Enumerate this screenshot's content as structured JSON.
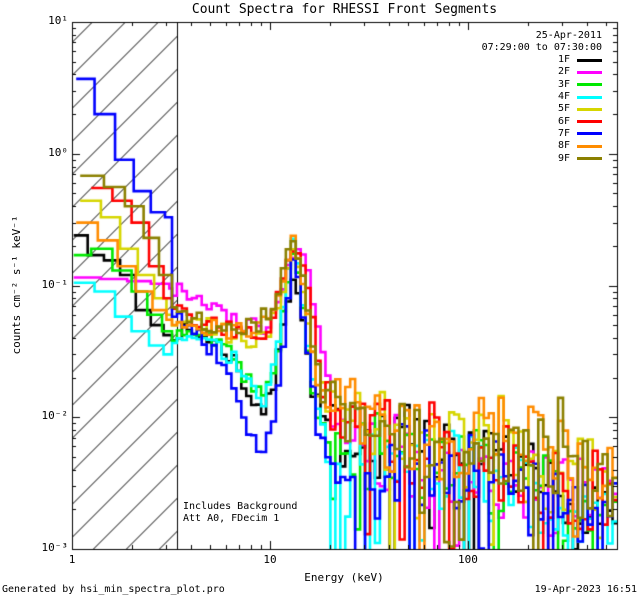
{
  "header": {
    "title": "Count Spectra for RHESSI Front Segments"
  },
  "annotations": {
    "date": "25-Apr-2011",
    "time_range": "07:29:00 to 07:30:00",
    "background_note": "Includes Background",
    "attenuator_note": "Att A0, FDecim 1"
  },
  "footer": {
    "generated_by": "Generated by hsi_min_spectra_plot.pro",
    "timestamp": "19-Apr-2023 16:51"
  },
  "chart_data": {
    "type": "line",
    "subtype": "histogram-step-spectra",
    "scale": "log-log",
    "title": "Count Spectra for RHESSI Front Segments",
    "xlabel": "Energy (keV)",
    "ylabel": "counts cm⁻² s⁻¹ keV⁻¹",
    "xlim": [
      1,
      566
    ],
    "ylim": [
      0.001,
      10
    ],
    "grid": false,
    "legend_position": "top-right-inside",
    "x_ticks": [
      {
        "value": 1,
        "label": "1"
      },
      {
        "value": 10,
        "label": "10"
      },
      {
        "value": 100,
        "label": "100"
      }
    ],
    "y_ticks": [
      {
        "value": 10,
        "label": "10¹"
      },
      {
        "value": 1,
        "label": "10⁰"
      },
      {
        "value": 0.1,
        "label": "10⁻¹"
      },
      {
        "value": 0.01,
        "label": "10⁻²"
      },
      {
        "value": 0.001,
        "label": "10⁻³"
      }
    ],
    "hatched_region": {
      "x_min": 1,
      "x_max": 3.4
    },
    "series": [
      {
        "name": "1F",
        "color": "#000000",
        "points": [
          [
            1.02,
            0.24
          ],
          [
            1.2,
            0.17
          ],
          [
            1.45,
            0.155
          ],
          [
            1.75,
            0.12
          ],
          [
            2.1,
            0.065
          ],
          [
            2.5,
            0.05
          ],
          [
            2.9,
            0.042
          ],
          [
            3.5,
            0.045
          ],
          [
            5,
            0.04
          ],
          [
            6.5,
            0.028
          ],
          [
            8,
            0.014
          ],
          [
            9.5,
            0.011
          ],
          [
            10.5,
            0.018
          ],
          [
            11.8,
            0.06
          ],
          [
            13.2,
            0.125
          ],
          [
            14.2,
            0.08
          ],
          [
            15.5,
            0.03
          ],
          [
            17,
            0.013
          ],
          [
            19,
            0.009
          ],
          [
            25,
            0.0065
          ],
          [
            40,
            0.0055
          ],
          [
            70,
            0.0045
          ],
          [
            120,
            0.0038
          ],
          [
            200,
            0.003
          ],
          [
            350,
            0.0022
          ],
          [
            566,
            0.0018
          ]
        ]
      },
      {
        "name": "2F",
        "color": "#ff00ff",
        "points": [
          [
            1.02,
            0.115
          ],
          [
            1.4,
            0.112
          ],
          [
            1.9,
            0.108
          ],
          [
            2.5,
            0.103
          ],
          [
            3.1,
            0.095
          ],
          [
            4,
            0.088
          ],
          [
            5.5,
            0.065
          ],
          [
            7,
            0.052
          ],
          [
            8.5,
            0.048
          ],
          [
            10,
            0.05
          ],
          [
            11.5,
            0.09
          ],
          [
            13,
            0.17
          ],
          [
            14,
            0.19
          ],
          [
            15,
            0.15
          ],
          [
            16.5,
            0.08
          ],
          [
            18,
            0.035
          ],
          [
            20,
            0.015
          ],
          [
            23,
            0.009
          ],
          [
            30,
            0.006
          ],
          [
            45,
            0.005
          ],
          [
            80,
            0.0042
          ],
          [
            130,
            0.0036
          ],
          [
            220,
            0.0028
          ],
          [
            400,
            0.0021
          ],
          [
            566,
            0.0019
          ]
        ]
      },
      {
        "name": "3F",
        "color": "#00e800",
        "points": [
          [
            1.02,
            0.17
          ],
          [
            1.25,
            0.19
          ],
          [
            1.6,
            0.13
          ],
          [
            2.0,
            0.09
          ],
          [
            2.4,
            0.06
          ],
          [
            2.85,
            0.045
          ],
          [
            3.5,
            0.04
          ],
          [
            5,
            0.042
          ],
          [
            6.5,
            0.03
          ],
          [
            8,
            0.018
          ],
          [
            9.5,
            0.014
          ],
          [
            10.8,
            0.025
          ],
          [
            12,
            0.08
          ],
          [
            13.2,
            0.19
          ],
          [
            14.2,
            0.1
          ],
          [
            15.5,
            0.035
          ],
          [
            17,
            0.013
          ],
          [
            19,
            0.0085
          ],
          [
            25,
            0.006
          ],
          [
            45,
            0.005
          ],
          [
            90,
            0.0042
          ],
          [
            150,
            0.0035
          ],
          [
            250,
            0.0027
          ],
          [
            400,
            0.0021
          ],
          [
            566,
            0.0018
          ]
        ]
      },
      {
        "name": "4F",
        "color": "#00ffff",
        "points": [
          [
            1.02,
            0.105
          ],
          [
            1.3,
            0.09
          ],
          [
            1.65,
            0.058
          ],
          [
            2.0,
            0.045
          ],
          [
            2.45,
            0.035
          ],
          [
            2.9,
            0.03
          ],
          [
            3.5,
            0.042
          ],
          [
            5,
            0.04
          ],
          [
            6.5,
            0.028
          ],
          [
            8,
            0.016
          ],
          [
            9.5,
            0.013
          ],
          [
            10.8,
            0.03
          ],
          [
            12,
            0.1
          ],
          [
            13.2,
            0.24
          ],
          [
            14.2,
            0.12
          ],
          [
            15.5,
            0.035
          ],
          [
            17,
            0.012
          ],
          [
            19,
            0.006
          ],
          [
            21,
            0.0022
          ],
          [
            24,
            0.007
          ],
          [
            35,
            0.005
          ],
          [
            60,
            0.0044
          ],
          [
            100,
            0.0038
          ],
          [
            170,
            0.0031
          ],
          [
            300,
            0.0024
          ],
          [
            566,
            0.0018
          ]
        ]
      },
      {
        "name": "5F",
        "color": "#d6d600",
        "points": [
          [
            1.1,
            0.44
          ],
          [
            1.4,
            0.33
          ],
          [
            1.75,
            0.19
          ],
          [
            2.15,
            0.12
          ],
          [
            2.6,
            0.08
          ],
          [
            3.0,
            0.06
          ],
          [
            3.6,
            0.052
          ],
          [
            5,
            0.048
          ],
          [
            6.5,
            0.042
          ],
          [
            8.5,
            0.038
          ],
          [
            10,
            0.045
          ],
          [
            11.5,
            0.09
          ],
          [
            13.2,
            0.21
          ],
          [
            14.3,
            0.13
          ],
          [
            15.8,
            0.05
          ],
          [
            17.5,
            0.018
          ],
          [
            20,
            0.012
          ],
          [
            28,
            0.0085
          ],
          [
            45,
            0.007
          ],
          [
            90,
            0.006
          ],
          [
            150,
            0.005
          ],
          [
            250,
            0.004
          ],
          [
            400,
            0.0032
          ],
          [
            566,
            0.0028
          ]
        ]
      },
      {
        "name": "6F",
        "color": "#ff0000",
        "points": [
          [
            1.25,
            0.55
          ],
          [
            1.6,
            0.44
          ],
          [
            2.0,
            0.3
          ],
          [
            2.45,
            0.14
          ],
          [
            2.9,
            0.08
          ],
          [
            3.6,
            0.06
          ],
          [
            5,
            0.05
          ],
          [
            6.5,
            0.046
          ],
          [
            8.5,
            0.042
          ],
          [
            10,
            0.05
          ],
          [
            11.5,
            0.1
          ],
          [
            13.3,
            0.2
          ],
          [
            14.5,
            0.15
          ],
          [
            16,
            0.07
          ],
          [
            17.5,
            0.028
          ],
          [
            19.5,
            0.013
          ],
          [
            23,
            0.0095
          ],
          [
            35,
            0.007
          ],
          [
            70,
            0.0055
          ],
          [
            120,
            0.0045
          ],
          [
            200,
            0.0036
          ],
          [
            350,
            0.0028
          ],
          [
            566,
            0.0022
          ]
        ]
      },
      {
        "name": "7F",
        "color": "#0000ff",
        "points": [
          [
            1.05,
            3.7
          ],
          [
            1.3,
            2.0
          ],
          [
            1.65,
            0.9
          ],
          [
            2.05,
            0.52
          ],
          [
            2.5,
            0.36
          ],
          [
            2.95,
            0.33
          ],
          [
            3.3,
            0.06
          ],
          [
            4.2,
            0.045
          ],
          [
            5.2,
            0.032
          ],
          [
            6.2,
            0.02
          ],
          [
            7.2,
            0.012
          ],
          [
            8.2,
            0.007
          ],
          [
            9.3,
            0.0055
          ],
          [
            10.5,
            0.009
          ],
          [
            11.8,
            0.04
          ],
          [
            13.2,
            0.16
          ],
          [
            14.2,
            0.09
          ],
          [
            15.5,
            0.03
          ],
          [
            17,
            0.01
          ],
          [
            19,
            0.005
          ],
          [
            22,
            0.0035
          ],
          [
            26,
            0.006
          ],
          [
            33,
            0.0014
          ],
          [
            40,
            0.0045
          ],
          [
            70,
            0.004
          ],
          [
            120,
            0.0034
          ],
          [
            200,
            0.0028
          ],
          [
            350,
            0.0021
          ],
          [
            566,
            0.0017
          ]
        ]
      },
      {
        "name": "8F",
        "color": "#ff8c00",
        "points": [
          [
            1.05,
            0.3
          ],
          [
            1.35,
            0.22
          ],
          [
            1.7,
            0.14
          ],
          [
            2.1,
            0.09
          ],
          [
            2.55,
            0.065
          ],
          [
            3.0,
            0.055
          ],
          [
            3.5,
            0.052
          ],
          [
            5,
            0.048
          ],
          [
            7,
            0.044
          ],
          [
            8.7,
            0.05
          ],
          [
            10.2,
            0.06
          ],
          [
            11.6,
            0.11
          ],
          [
            13.1,
            0.26
          ],
          [
            14.2,
            0.15
          ],
          [
            15.7,
            0.055
          ],
          [
            17.5,
            0.02
          ],
          [
            20,
            0.014
          ],
          [
            28,
            0.0095
          ],
          [
            45,
            0.0075
          ],
          [
            90,
            0.006
          ],
          [
            145,
            0.0105
          ],
          [
            165,
            0.0055
          ],
          [
            250,
            0.009
          ],
          [
            300,
            0.0045
          ],
          [
            420,
            0.0032
          ],
          [
            566,
            0.0026
          ]
        ]
      },
      {
        "name": "9F",
        "color": "#8b8000",
        "points": [
          [
            1.1,
            0.68
          ],
          [
            1.45,
            0.56
          ],
          [
            1.85,
            0.4
          ],
          [
            2.3,
            0.23
          ],
          [
            2.75,
            0.12
          ],
          [
            3.6,
            0.062
          ],
          [
            5,
            0.052
          ],
          [
            7,
            0.046
          ],
          [
            8.7,
            0.052
          ],
          [
            10.2,
            0.062
          ],
          [
            11.6,
            0.12
          ],
          [
            13.2,
            0.24
          ],
          [
            14.3,
            0.15
          ],
          [
            15.8,
            0.058
          ],
          [
            17.5,
            0.022
          ],
          [
            20,
            0.014
          ],
          [
            28,
            0.0095
          ],
          [
            45,
            0.008
          ],
          [
            90,
            0.0065
          ],
          [
            150,
            0.0055
          ],
          [
            250,
            0.0045
          ],
          [
            400,
            0.0034
          ],
          [
            566,
            0.0028
          ]
        ]
      }
    ],
    "render_hints": {
      "bins_per_decade": 40,
      "noise_start_energy": 3.2,
      "amplitude_profile": [
        [
          3.2,
          0.06
        ],
        [
          9,
          0.08
        ],
        [
          10.5,
          0.05
        ],
        [
          15,
          0.05
        ],
        [
          18,
          0.15
        ],
        [
          25,
          0.28
        ],
        [
          40,
          0.32
        ],
        [
          100,
          0.32
        ],
        [
          566,
          0.36
        ]
      ],
      "spike_min_energy": 18,
      "seed_base": 7,
      "line_width": 2.6,
      "hatch_spacing_px": 33
    }
  }
}
